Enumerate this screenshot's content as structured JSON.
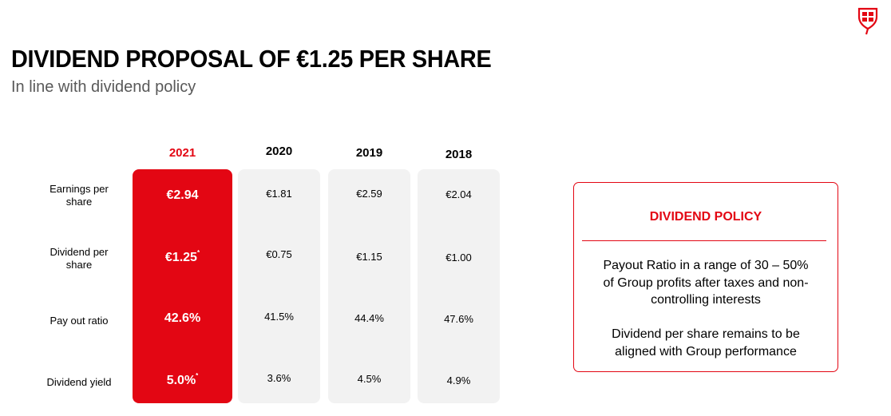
{
  "header": {
    "title": "DIVIDEND PROPOSAL OF €1.25 PER SHARE",
    "subtitle": "In line with dividend policy"
  },
  "brand": {
    "accent_color": "#e30613",
    "logo_icon": "shield-logo-icon"
  },
  "table": {
    "row_labels": [
      "Earnings per share",
      "Dividend per share",
      "Pay out ratio",
      "Dividend yield"
    ],
    "columns": [
      {
        "year": "2021",
        "highlight": true,
        "values": [
          "€2.94",
          "€1.25",
          "42.6%",
          "5.0%"
        ],
        "footnote_marks": [
          "",
          "*",
          "",
          "*"
        ]
      },
      {
        "year": "2020",
        "highlight": false,
        "values": [
          "€1.81",
          "€0.75",
          "41.5%",
          "3.6%"
        ],
        "footnote_marks": [
          "",
          "",
          "",
          ""
        ]
      },
      {
        "year": "2019",
        "highlight": false,
        "values": [
          "€2.59",
          "€1.15",
          "44.4%",
          "4.5%"
        ],
        "footnote_marks": [
          "",
          "",
          "",
          ""
        ]
      },
      {
        "year": "2018",
        "highlight": false,
        "values": [
          "€2.04",
          "€1.00",
          "47.6%",
          "4.9%"
        ],
        "footnote_marks": [
          "",
          "",
          "",
          ""
        ]
      }
    ]
  },
  "policy": {
    "title": "DIVIDEND POLICY",
    "paragraph_1": "Payout Ratio in a range of 30 – 50% of Group profits after taxes and non-controlling interests",
    "paragraph_2": "Dividend per share remains to be aligned with Group performance"
  }
}
